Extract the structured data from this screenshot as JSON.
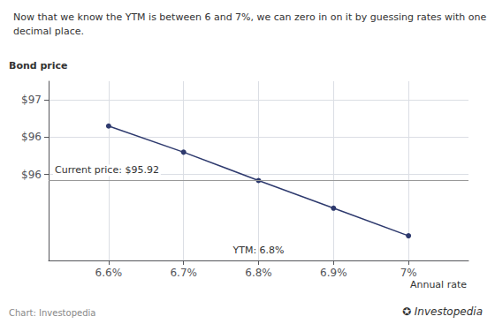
{
  "chart_data": {
    "type": "line",
    "title": "Now that we know the YTM is between 6 and 7%, we can zero in on it by guessing rates with one\ndecimal place.",
    "x_label": "Annual rate",
    "y_label": "Bond price",
    "x": [
      6.6,
      6.7,
      6.8,
      6.9,
      7.0
    ],
    "values": [
      96.65,
      96.3,
      95.92,
      95.55,
      95.18
    ],
    "color": "#2e3a6e",
    "marker": "circle",
    "xlim": [
      6.52,
      7.08
    ],
    "xticks": [
      {
        "value": 6.6,
        "label": "6.6%"
      },
      {
        "value": 6.7,
        "label": "6.7%"
      },
      {
        "value": 6.8,
        "label": "6.8%"
      },
      {
        "value": 6.9,
        "label": "6.9%"
      },
      {
        "value": 7.0,
        "label": "7%"
      }
    ],
    "ylim": [
      94.85,
      97.25
    ],
    "yticks": [
      {
        "value": 97.0,
        "label": "$97"
      },
      {
        "value": 96.5,
        "label": "$96"
      },
      {
        "value": 96.0,
        "label": "$96"
      }
    ],
    "grid": true,
    "annotations": [
      {
        "text": "Current price: $95.92",
        "y": 95.92,
        "color": "#999999"
      },
      {
        "text": "YTM: 6.8%",
        "x": 6.8
      },
      {
        "text": "Chart: Investopedia"
      },
      {
        "text": "✪ Investopedia"
      }
    ]
  }
}
